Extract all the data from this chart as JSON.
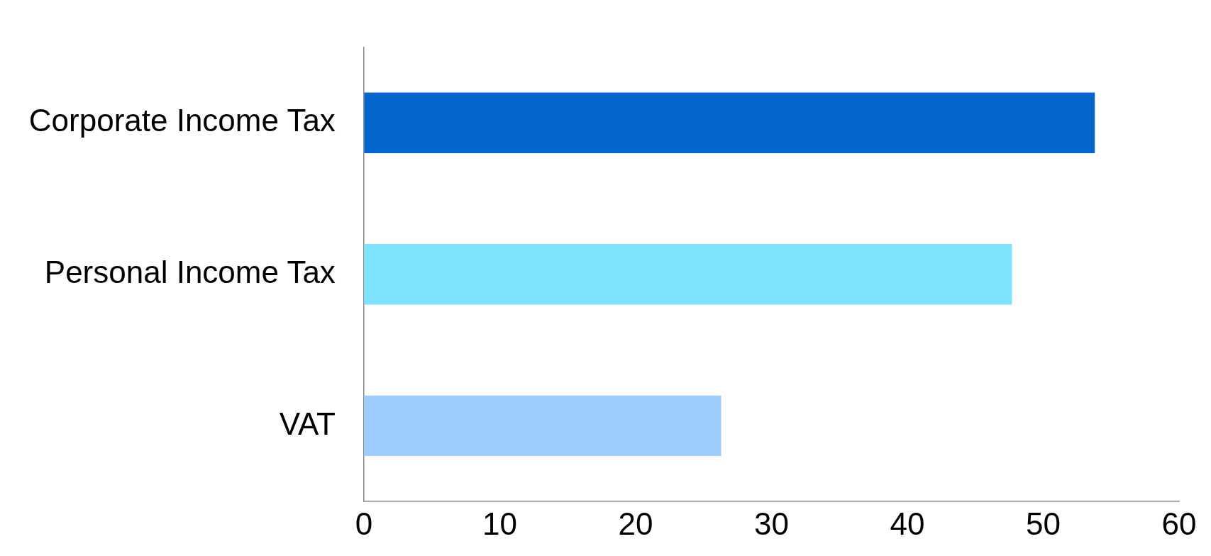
{
  "chart_data": {
    "type": "bar",
    "orientation": "horizontal",
    "categories": [
      "Corporate Income Tax",
      "Personal Income Tax",
      "VAT"
    ],
    "values": [
      53.8,
      47.7,
      26.3
    ],
    "colors": [
      "#0366cc",
      "#7ee3fd",
      "#9dccfd"
    ],
    "xlim": [
      0,
      60
    ],
    "xticks": [
      0,
      10,
      20,
      30,
      40,
      50,
      60
    ],
    "grid": false,
    "legend": false
  }
}
